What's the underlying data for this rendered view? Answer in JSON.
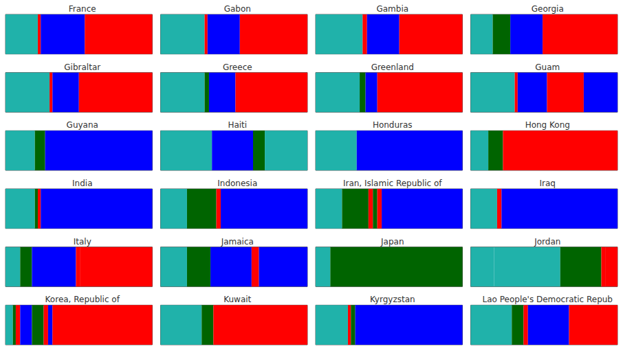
{
  "chart_data": [
    {
      "type": "bar",
      "title": "France",
      "orientation": "horizontal",
      "stacked": true,
      "categories": [
        null
      ],
      "xlim": [
        0,
        100
      ],
      "tick_labels": false,
      "grid": false,
      "series": [
        {
          "color": "#20B2AA",
          "values": [
            22
          ]
        },
        {
          "color": "#FF0000",
          "values": [
            2
          ]
        },
        {
          "color": "#0000FF",
          "values": [
            30
          ]
        },
        {
          "color": "#FF0000",
          "values": [
            46
          ]
        }
      ]
    },
    {
      "type": "bar",
      "title": "Gabon",
      "orientation": "horizontal",
      "stacked": true,
      "categories": [
        null
      ],
      "xlim": [
        0,
        100
      ],
      "tick_labels": false,
      "grid": false,
      "series": [
        {
          "color": "#20B2AA",
          "values": [
            30
          ]
        },
        {
          "color": "#FF0000",
          "values": [
            2
          ]
        },
        {
          "color": "#0000FF",
          "values": [
            22
          ]
        },
        {
          "color": "#FF0000",
          "values": [
            46
          ]
        }
      ]
    },
    {
      "type": "bar",
      "title": "Gambia",
      "orientation": "horizontal",
      "stacked": true,
      "categories": [
        null
      ],
      "xlim": [
        0,
        100
      ],
      "tick_labels": false,
      "grid": false,
      "series": [
        {
          "color": "#20B2AA",
          "values": [
            32
          ]
        },
        {
          "color": "#FF0000",
          "values": [
            3
          ]
        },
        {
          "color": "#0000FF",
          "values": [
            22
          ]
        },
        {
          "color": "#FF0000",
          "values": [
            43
          ]
        }
      ]
    },
    {
      "type": "bar",
      "title": "Georgia",
      "orientation": "horizontal",
      "stacked": true,
      "categories": [
        null
      ],
      "xlim": [
        0,
        100
      ],
      "tick_labels": false,
      "grid": false,
      "series": [
        {
          "color": "#20B2AA",
          "values": [
            15
          ]
        },
        {
          "color": "#006400",
          "values": [
            12
          ]
        },
        {
          "color": "#0000FF",
          "values": [
            22
          ]
        },
        {
          "color": "#FF0000",
          "values": [
            51
          ]
        }
      ]
    },
    {
      "type": "bar",
      "title": "Gibraltar",
      "orientation": "horizontal",
      "stacked": true,
      "categories": [
        null
      ],
      "xlim": [
        0,
        100
      ],
      "tick_labels": false,
      "grid": false,
      "series": [
        {
          "color": "#20B2AA",
          "values": [
            30
          ]
        },
        {
          "color": "#FF0000",
          "values": [
            2
          ]
        },
        {
          "color": "#0000FF",
          "values": [
            18
          ]
        },
        {
          "color": "#FF0000",
          "values": [
            50
          ]
        }
      ]
    },
    {
      "type": "bar",
      "title": "Greece",
      "orientation": "horizontal",
      "stacked": true,
      "categories": [
        null
      ],
      "xlim": [
        0,
        100
      ],
      "tick_labels": false,
      "grid": false,
      "series": [
        {
          "color": "#20B2AA",
          "values": [
            30
          ]
        },
        {
          "color": "#006400",
          "values": [
            3
          ]
        },
        {
          "color": "#0000FF",
          "values": [
            18
          ]
        },
        {
          "color": "#FF0000",
          "values": [
            49
          ]
        }
      ]
    },
    {
      "type": "bar",
      "title": "Greenland",
      "orientation": "horizontal",
      "stacked": true,
      "categories": [
        null
      ],
      "xlim": [
        0,
        100
      ],
      "tick_labels": false,
      "grid": false,
      "series": [
        {
          "color": "#20B2AA",
          "values": [
            30
          ]
        },
        {
          "color": "#006400",
          "values": [
            4
          ]
        },
        {
          "color": "#0000FF",
          "values": [
            8
          ]
        },
        {
          "color": "#FF0000",
          "values": [
            58
          ]
        }
      ]
    },
    {
      "type": "bar",
      "title": "Guam",
      "orientation": "horizontal",
      "stacked": true,
      "categories": [
        null
      ],
      "xlim": [
        0,
        100
      ],
      "tick_labels": false,
      "grid": false,
      "series": [
        {
          "color": "#20B2AA",
          "values": [
            30
          ]
        },
        {
          "color": "#FF0000",
          "values": [
            2
          ]
        },
        {
          "color": "#0000FF",
          "values": [
            20
          ]
        },
        {
          "color": "#FF0000",
          "values": [
            25
          ]
        },
        {
          "color": "#0000FF",
          "values": [
            23
          ]
        }
      ]
    },
    {
      "type": "bar",
      "title": "Guyana",
      "orientation": "horizontal",
      "stacked": true,
      "categories": [
        null
      ],
      "xlim": [
        0,
        100
      ],
      "tick_labels": false,
      "grid": false,
      "series": [
        {
          "color": "#20B2AA",
          "values": [
            20
          ]
        },
        {
          "color": "#006400",
          "values": [
            7
          ]
        },
        {
          "color": "#0000FF",
          "values": [
            73
          ]
        }
      ]
    },
    {
      "type": "bar",
      "title": "Haiti",
      "orientation": "horizontal",
      "stacked": true,
      "categories": [
        null
      ],
      "xlim": [
        0,
        100
      ],
      "tick_labels": false,
      "grid": false,
      "series": [
        {
          "color": "#20B2AA",
          "values": [
            35
          ]
        },
        {
          "color": "#0000FF",
          "values": [
            28
          ]
        },
        {
          "color": "#006400",
          "values": [
            8
          ]
        },
        {
          "color": "#20B2AA",
          "values": [
            29
          ]
        }
      ]
    },
    {
      "type": "bar",
      "title": "Honduras",
      "orientation": "horizontal",
      "stacked": true,
      "categories": [
        null
      ],
      "xlim": [
        0,
        100
      ],
      "tick_labels": false,
      "grid": false,
      "series": [
        {
          "color": "#20B2AA",
          "values": [
            28
          ]
        },
        {
          "color": "#0000FF",
          "values": [
            72
          ]
        }
      ]
    },
    {
      "type": "bar",
      "title": "Hong Kong",
      "orientation": "horizontal",
      "stacked": true,
      "categories": [
        null
      ],
      "xlim": [
        0,
        100
      ],
      "tick_labels": false,
      "grid": false,
      "series": [
        {
          "color": "#20B2AA",
          "values": [
            12
          ]
        },
        {
          "color": "#006400",
          "values": [
            10
          ]
        },
        {
          "color": "#FF0000",
          "values": [
            78
          ]
        }
      ]
    },
    {
      "type": "bar",
      "title": "India",
      "orientation": "horizontal",
      "stacked": true,
      "categories": [
        null
      ],
      "xlim": [
        0,
        100
      ],
      "tick_labels": false,
      "grid": false,
      "series": [
        {
          "color": "#20B2AA",
          "values": [
            20
          ]
        },
        {
          "color": "#006400",
          "values": [
            2
          ]
        },
        {
          "color": "#FF0000",
          "values": [
            2
          ]
        },
        {
          "color": "#0000FF",
          "values": [
            76
          ]
        }
      ]
    },
    {
      "type": "bar",
      "title": "Indonesia",
      "orientation": "horizontal",
      "stacked": true,
      "categories": [
        null
      ],
      "xlim": [
        0,
        100
      ],
      "tick_labels": false,
      "grid": false,
      "series": [
        {
          "color": "#20B2AA",
          "values": [
            18
          ]
        },
        {
          "color": "#006400",
          "values": [
            20
          ]
        },
        {
          "color": "#FF0000",
          "values": [
            3
          ]
        },
        {
          "color": "#0000FF",
          "values": [
            59
          ]
        }
      ]
    },
    {
      "type": "bar",
      "title": "Iran, Islamic Republic of",
      "orientation": "horizontal",
      "stacked": true,
      "categories": [
        null
      ],
      "xlim": [
        0,
        100
      ],
      "tick_labels": false,
      "grid": false,
      "series": [
        {
          "color": "#20B2AA",
          "values": [
            18
          ]
        },
        {
          "color": "#006400",
          "values": [
            18
          ]
        },
        {
          "color": "#FF0000",
          "values": [
            3
          ]
        },
        {
          "color": "#006400",
          "values": [
            3
          ]
        },
        {
          "color": "#FF0000",
          "values": [
            3
          ]
        },
        {
          "color": "#0000FF",
          "values": [
            55
          ]
        }
      ]
    },
    {
      "type": "bar",
      "title": "Iraq",
      "orientation": "horizontal",
      "stacked": true,
      "categories": [
        null
      ],
      "xlim": [
        0,
        100
      ],
      "tick_labels": false,
      "grid": false,
      "series": [
        {
          "color": "#20B2AA",
          "values": [
            18
          ]
        },
        {
          "color": "#FF0000",
          "values": [
            3
          ]
        },
        {
          "color": "#0000FF",
          "values": [
            79
          ]
        }
      ]
    },
    {
      "type": "bar",
      "title": "Italy",
      "orientation": "horizontal",
      "stacked": true,
      "categories": [
        null
      ],
      "xlim": [
        0,
        100
      ],
      "tick_labels": false,
      "grid": false,
      "series": [
        {
          "color": "#20B2AA",
          "values": [
            10
          ]
        },
        {
          "color": "#006400",
          "values": [
            8
          ]
        },
        {
          "color": "#0000FF",
          "values": [
            30
          ]
        },
        {
          "color": "#FF0000",
          "values": [
            3
          ]
        },
        {
          "color": "#FF0000",
          "values": [
            49
          ]
        }
      ]
    },
    {
      "type": "bar",
      "title": "Jamaica",
      "orientation": "horizontal",
      "stacked": true,
      "categories": [
        null
      ],
      "xlim": [
        0,
        100
      ],
      "tick_labels": false,
      "grid": false,
      "series": [
        {
          "color": "#20B2AA",
          "values": [
            18
          ]
        },
        {
          "color": "#006400",
          "values": [
            16
          ]
        },
        {
          "color": "#0000FF",
          "values": [
            28
          ]
        },
        {
          "color": "#FF0000",
          "values": [
            5
          ]
        },
        {
          "color": "#0000FF",
          "values": [
            33
          ]
        }
      ]
    },
    {
      "type": "bar",
      "title": "Japan",
      "orientation": "horizontal",
      "stacked": true,
      "categories": [
        null
      ],
      "xlim": [
        0,
        100
      ],
      "tick_labels": false,
      "grid": false,
      "series": [
        {
          "color": "#20B2AA",
          "values": [
            10
          ]
        },
        {
          "color": "#006400",
          "values": [
            90
          ]
        }
      ]
    },
    {
      "type": "bar",
      "title": "Jordan",
      "orientation": "horizontal",
      "stacked": true,
      "categories": [
        null
      ],
      "xlim": [
        0,
        100
      ],
      "tick_labels": false,
      "grid": false,
      "series": [
        {
          "color": "#20B2AA",
          "values": [
            16
          ]
        },
        {
          "color": "#20B2AA",
          "values": [
            45
          ]
        },
        {
          "color": "#006400",
          "values": [
            28
          ]
        },
        {
          "color": "#FF0000",
          "values": [
            3
          ]
        },
        {
          "color": "#FF0000",
          "values": [
            8
          ]
        }
      ]
    },
    {
      "type": "bar",
      "title": "Korea, Republic of",
      "orientation": "horizontal",
      "stacked": true,
      "categories": [
        null
      ],
      "xlim": [
        0,
        100
      ],
      "tick_labels": false,
      "grid": false,
      "series": [
        {
          "color": "#20B2AA",
          "values": [
            5
          ]
        },
        {
          "color": "#006400",
          "values": [
            2
          ]
        },
        {
          "color": "#FF0000",
          "values": [
            3
          ]
        },
        {
          "color": "#0000FF",
          "values": [
            8
          ]
        },
        {
          "color": "#006400",
          "values": [
            8
          ]
        },
        {
          "color": "#FF0000",
          "values": [
            3
          ]
        },
        {
          "color": "#0000FF",
          "values": [
            3
          ]
        },
        {
          "color": "#FF0000",
          "values": [
            68
          ]
        }
      ]
    },
    {
      "type": "bar",
      "title": "Kuwait",
      "orientation": "horizontal",
      "stacked": true,
      "categories": [
        null
      ],
      "xlim": [
        0,
        100
      ],
      "tick_labels": false,
      "grid": false,
      "series": [
        {
          "color": "#20B2AA",
          "values": [
            28
          ]
        },
        {
          "color": "#006400",
          "values": [
            8
          ]
        },
        {
          "color": "#FF0000",
          "values": [
            64
          ]
        }
      ]
    },
    {
      "type": "bar",
      "title": "Kyrgyzstan",
      "orientation": "horizontal",
      "stacked": true,
      "categories": [
        null
      ],
      "xlim": [
        0,
        100
      ],
      "tick_labels": false,
      "grid": false,
      "series": [
        {
          "color": "#20B2AA",
          "values": [
            22
          ]
        },
        {
          "color": "#FF0000",
          "values": [
            2
          ]
        },
        {
          "color": "#006400",
          "values": [
            3
          ]
        },
        {
          "color": "#0000FF",
          "values": [
            73
          ]
        }
      ]
    },
    {
      "type": "bar",
      "title": "Lao People's Democratic Repub",
      "orientation": "horizontal",
      "stacked": true,
      "categories": [
        null
      ],
      "xlim": [
        0,
        100
      ],
      "tick_labels": false,
      "grid": false,
      "series": [
        {
          "color": "#20B2AA",
          "values": [
            28
          ]
        },
        {
          "color": "#006400",
          "values": [
            8
          ]
        },
        {
          "color": "#FF0000",
          "values": [
            3
          ]
        },
        {
          "color": "#0000FF",
          "values": [
            28
          ]
        },
        {
          "color": "#FF0000",
          "values": [
            33
          ]
        }
      ]
    }
  ]
}
